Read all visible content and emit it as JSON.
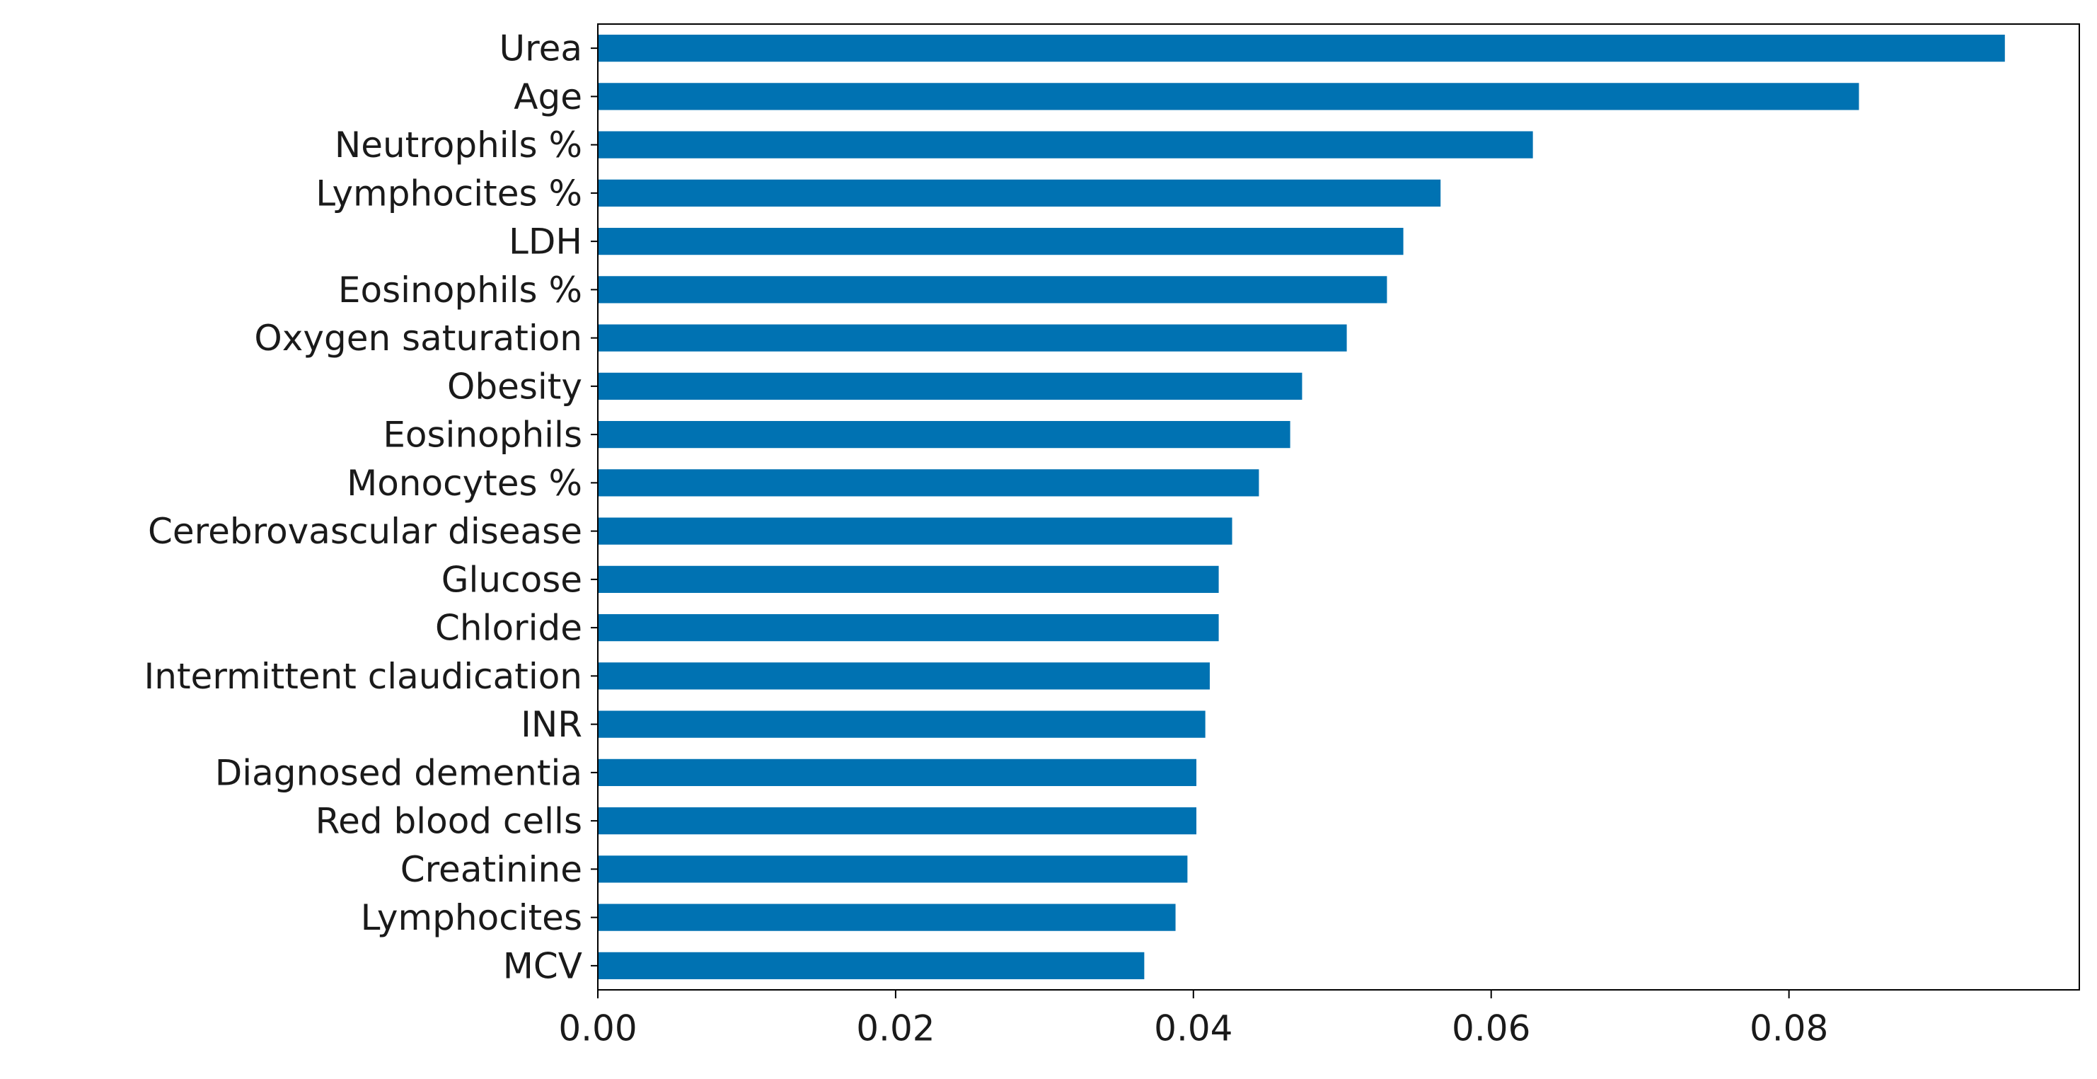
{
  "chart_data": {
    "type": "barh",
    "categories": [
      "Urea",
      "Age",
      "Neutrophils %",
      "Lymphocites %",
      "LDH",
      "Eosinophils %",
      "Oxygen saturation",
      "Obesity",
      "Eosinophils",
      "Monocytes %",
      "Cerebrovascular disease",
      "Glucose",
      "Chloride",
      "Intermittent claudication",
      "INR",
      "Diagnosed dementia",
      "Red blood cells",
      "Creatinine",
      "Lymphocites",
      "MCV"
    ],
    "values": [
      0.0945,
      0.0847,
      0.0628,
      0.0566,
      0.0541,
      0.053,
      0.0503,
      0.0473,
      0.0465,
      0.0444,
      0.0426,
      0.0417,
      0.0417,
      0.0411,
      0.0408,
      0.0402,
      0.0402,
      0.0396,
      0.0388,
      0.0367
    ],
    "color": "#0072b2",
    "xlim": [
      0,
      0.0995
    ],
    "xticks": [
      {
        "value": 0,
        "label": "0.00"
      },
      {
        "value": 0.02,
        "label": "0.02"
      },
      {
        "value": 0.04,
        "label": "0.04"
      },
      {
        "value": 0.06,
        "label": "0.06"
      },
      {
        "value": 0.08,
        "label": "0.08"
      }
    ]
  }
}
